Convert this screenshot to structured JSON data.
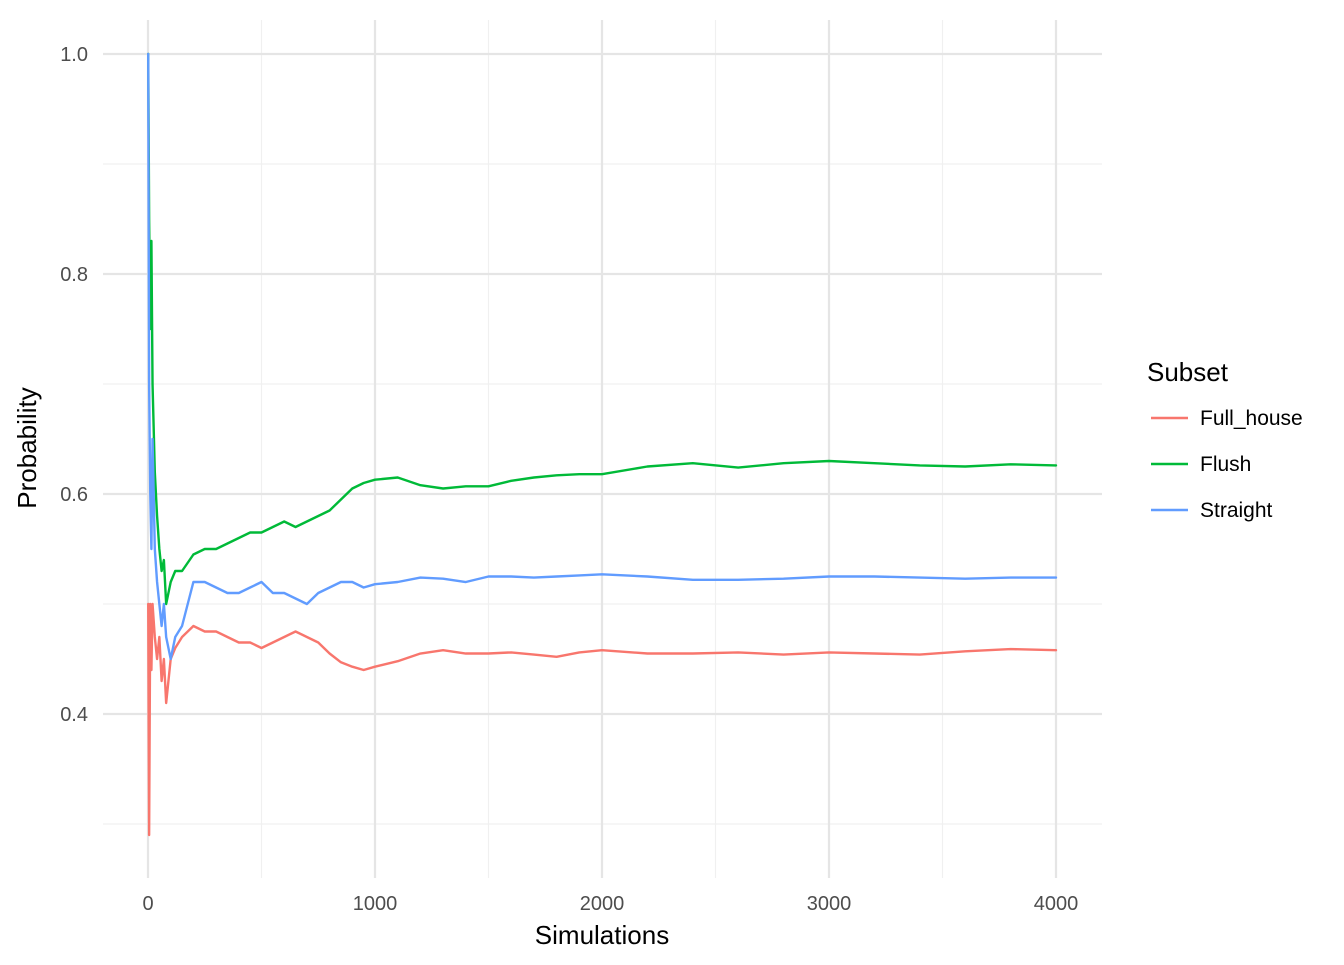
{
  "chart_data": {
    "type": "line",
    "xlabel": "Simulations",
    "ylabel": "Probability",
    "xlim": [
      0,
      4000
    ],
    "ylim": [
      0.28,
      1.0
    ],
    "x_ticks": [
      0,
      1000,
      2000,
      3000,
      4000
    ],
    "x_tick_labels": [
      "0",
      "1000",
      "2000",
      "3000",
      "4000"
    ],
    "y_ticks": [
      0.4,
      0.6,
      0.8,
      1.0
    ],
    "y_tick_labels": [
      "0.4",
      "0.6",
      "0.8",
      "1.0"
    ],
    "grid": true,
    "legend": {
      "title": "Subset",
      "position": "right"
    },
    "series": [
      {
        "name": "Full_house",
        "color": "#F8766D",
        "x": [
          1,
          5,
          10,
          15,
          20,
          30,
          40,
          50,
          60,
          70,
          80,
          100,
          120,
          150,
          200,
          250,
          300,
          350,
          400,
          450,
          500,
          550,
          600,
          650,
          700,
          750,
          800,
          850,
          900,
          950,
          1000,
          1100,
          1200,
          1300,
          1400,
          1500,
          1600,
          1700,
          1800,
          1900,
          2000,
          2200,
          2400,
          2600,
          2800,
          3000,
          3200,
          3400,
          3600,
          3800,
          4000
        ],
        "y": [
          0.5,
          0.29,
          0.5,
          0.44,
          0.5,
          0.47,
          0.45,
          0.47,
          0.43,
          0.45,
          0.41,
          0.45,
          0.46,
          0.47,
          0.48,
          0.475,
          0.475,
          0.47,
          0.465,
          0.465,
          0.46,
          0.465,
          0.47,
          0.475,
          0.47,
          0.465,
          0.455,
          0.447,
          0.443,
          0.44,
          0.443,
          0.448,
          0.455,
          0.458,
          0.455,
          0.455,
          0.456,
          0.454,
          0.452,
          0.456,
          0.458,
          0.455,
          0.455,
          0.456,
          0.454,
          0.456,
          0.455,
          0.454,
          0.457,
          0.459,
          0.458
        ]
      },
      {
        "name": "Flush",
        "color": "#00BA38",
        "x": [
          1,
          5,
          10,
          15,
          20,
          30,
          40,
          50,
          60,
          70,
          80,
          100,
          120,
          150,
          200,
          250,
          300,
          350,
          400,
          450,
          500,
          550,
          600,
          650,
          700,
          750,
          800,
          850,
          900,
          950,
          1000,
          1100,
          1200,
          1300,
          1400,
          1500,
          1600,
          1700,
          1800,
          1900,
          2000,
          2200,
          2400,
          2600,
          2800,
          3000,
          3200,
          3400,
          3600,
          3800,
          4000
        ],
        "y": [
          1.0,
          0.85,
          0.75,
          0.83,
          0.7,
          0.62,
          0.58,
          0.55,
          0.53,
          0.54,
          0.5,
          0.52,
          0.53,
          0.53,
          0.545,
          0.55,
          0.55,
          0.555,
          0.56,
          0.565,
          0.565,
          0.57,
          0.575,
          0.57,
          0.575,
          0.58,
          0.585,
          0.595,
          0.605,
          0.61,
          0.613,
          0.615,
          0.608,
          0.605,
          0.607,
          0.607,
          0.612,
          0.615,
          0.617,
          0.618,
          0.618,
          0.625,
          0.628,
          0.624,
          0.628,
          0.63,
          0.628,
          0.626,
          0.625,
          0.627,
          0.626
        ]
      },
      {
        "name": "Straight",
        "color": "#619CFF",
        "x": [
          1,
          5,
          10,
          15,
          20,
          30,
          40,
          50,
          60,
          70,
          80,
          100,
          120,
          150,
          200,
          250,
          300,
          350,
          400,
          450,
          500,
          550,
          600,
          650,
          700,
          750,
          800,
          850,
          900,
          950,
          1000,
          1100,
          1200,
          1300,
          1400,
          1500,
          1600,
          1700,
          1800,
          1900,
          2000,
          2200,
          2400,
          2600,
          2800,
          3000,
          3200,
          3400,
          3600,
          3800,
          4000
        ],
        "y": [
          1.0,
          0.7,
          0.6,
          0.55,
          0.65,
          0.55,
          0.52,
          0.5,
          0.48,
          0.5,
          0.47,
          0.45,
          0.47,
          0.48,
          0.52,
          0.52,
          0.515,
          0.51,
          0.51,
          0.515,
          0.52,
          0.51,
          0.51,
          0.505,
          0.5,
          0.51,
          0.515,
          0.52,
          0.52,
          0.515,
          0.518,
          0.52,
          0.524,
          0.523,
          0.52,
          0.525,
          0.525,
          0.524,
          0.525,
          0.526,
          0.527,
          0.525,
          0.522,
          0.522,
          0.523,
          0.525,
          0.525,
          0.524,
          0.523,
          0.524,
          0.524
        ]
      }
    ]
  }
}
